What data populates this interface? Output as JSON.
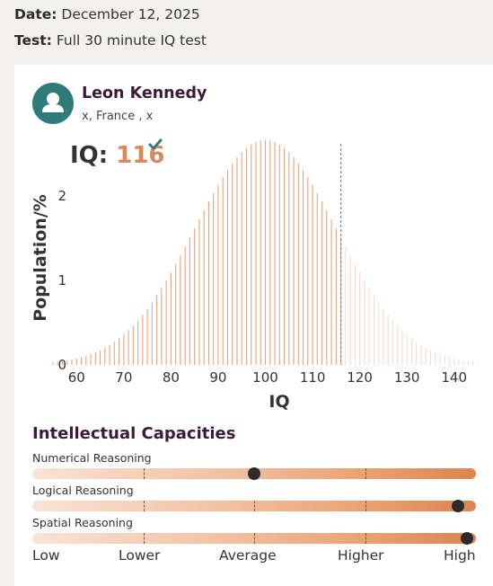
{
  "meta": {
    "date_label": "Date:",
    "date_value": "December 12, 2025",
    "test_label": "Test:",
    "test_value": "Full 30 minute IQ test"
  },
  "user": {
    "name": "Leon Kennedy",
    "location": "x, France , x",
    "avatar_icon": "user-icon",
    "avatar_color": "#2f7b79"
  },
  "iq": {
    "label": "IQ:",
    "value": "116",
    "check_icon": "check-icon",
    "check_color": "#2f7b79"
  },
  "chart_data": {
    "type": "bar",
    "xlabel": "IQ",
    "ylabel": "Population/%",
    "xticks": [
      "60",
      "70",
      "80",
      "90",
      "100",
      "110",
      "120",
      "130",
      "140"
    ],
    "yticks": [
      "0",
      "1",
      "2"
    ],
    "xlim": [
      55,
      145
    ],
    "ylim": [
      0,
      2.7
    ],
    "distribution": {
      "mean": 100,
      "sd": 15,
      "step": 1
    },
    "marker_value": 116,
    "colors": {
      "bar": "#e6a57f",
      "bar_beyond": "#f6dccb",
      "marker": "#6f8fa3"
    }
  },
  "capacities": {
    "title": "Intellectual Capacities",
    "items": [
      {
        "label": "Numerical Reasoning",
        "level": 0.5
      },
      {
        "label": "Logical Reasoning",
        "level": 0.96
      },
      {
        "label": "Spatial Reasoning",
        "level": 0.98
      }
    ],
    "scale_labels": [
      "Low",
      "Lower",
      "Average",
      "Higher",
      "High"
    ]
  }
}
